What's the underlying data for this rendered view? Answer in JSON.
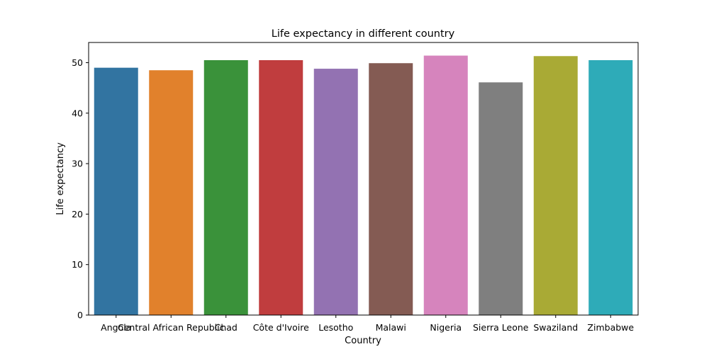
{
  "chart_data": {
    "type": "bar",
    "title": "Life expectancy in different country",
    "xlabel": "Country",
    "ylabel": "Life expectancy",
    "categories": [
      "Angola",
      "Central African Republic",
      "Chad",
      "Côte d'Ivoire",
      "Lesotho",
      "Malawi",
      "Nigeria",
      "Sierra Leone",
      "Swaziland",
      "Zimbabwe"
    ],
    "values": [
      49.0,
      48.5,
      50.5,
      50.5,
      48.8,
      49.9,
      51.4,
      46.1,
      51.3,
      50.5
    ],
    "colors": [
      "#3274a1",
      "#e1812c",
      "#3a923a",
      "#c03d3e",
      "#9372b2",
      "#845b53",
      "#d684bd",
      "#7f7f7f",
      "#a9aa35",
      "#2eabb8"
    ],
    "ylim": [
      0,
      54
    ],
    "yticks": [
      0,
      10,
      20,
      30,
      40,
      50
    ],
    "grid": false,
    "legend": "none"
  }
}
